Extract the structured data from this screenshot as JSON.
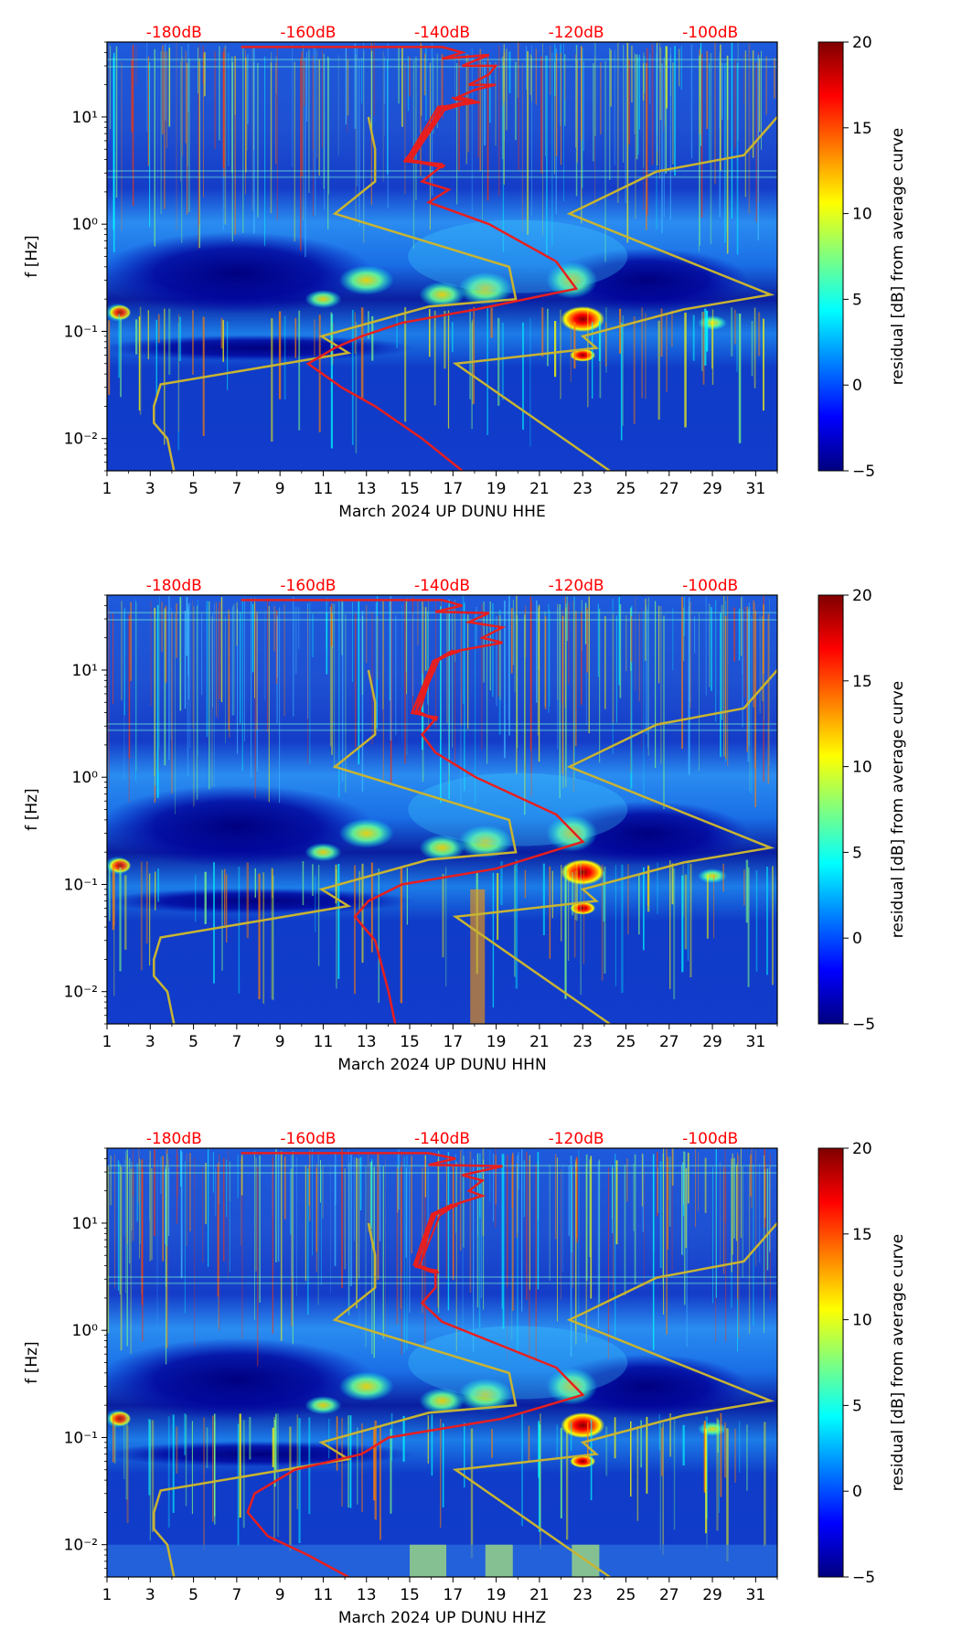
{
  "chart_data": [
    {
      "type": "heatmap",
      "xlabel": "March 2024 UP DUNU  HHE",
      "ylabel": "f [Hz]",
      "xticks": [
        "1",
        "3",
        "5",
        "7",
        "9",
        "11",
        "13",
        "15",
        "17",
        "19",
        "21",
        "23",
        "25",
        "27",
        "29",
        "31"
      ],
      "xlim": [
        1,
        32
      ],
      "yscale": "log",
      "ylim": [
        0.005,
        50
      ],
      "yticks": [
        {
          "label": "10⁻²",
          "value": 0.01
        },
        {
          "label": "10⁻¹",
          "value": 0.1
        },
        {
          "label": "10⁰",
          "value": 1
        },
        {
          "label": "10¹",
          "value": 10
        }
      ],
      "top_axis_labels": [
        "-180dB",
        "-160dB",
        "-140dB",
        "-120dB",
        "-100dB"
      ],
      "colorbar": {
        "label": "residual [dB] from average curve",
        "range": [
          -5,
          20
        ],
        "ticks": [
          "−5",
          "0",
          "5",
          "10",
          "15",
          "20"
        ],
        "colormap": "jet"
      },
      "grid": false
    },
    {
      "type": "heatmap",
      "xlabel": "March 2024 UP DUNU  HHN",
      "ylabel": "f [Hz]",
      "xticks": [
        "1",
        "3",
        "5",
        "7",
        "9",
        "11",
        "13",
        "15",
        "17",
        "19",
        "21",
        "23",
        "25",
        "27",
        "29",
        "31"
      ],
      "xlim": [
        1,
        32
      ],
      "yscale": "log",
      "ylim": [
        0.005,
        50
      ],
      "yticks": [
        {
          "label": "10⁻²",
          "value": 0.01
        },
        {
          "label": "10⁻¹",
          "value": 0.1
        },
        {
          "label": "10⁰",
          "value": 1
        },
        {
          "label": "10¹",
          "value": 10
        }
      ],
      "top_axis_labels": [
        "-180dB",
        "-160dB",
        "-140dB",
        "-120dB",
        "-100dB"
      ],
      "colorbar": {
        "label": "residual [dB] from average curve",
        "range": [
          -5,
          20
        ],
        "ticks": [
          "−5",
          "0",
          "5",
          "10",
          "15",
          "20"
        ],
        "colormap": "jet"
      },
      "grid": false
    },
    {
      "type": "heatmap",
      "xlabel": "March 2024 UP DUNU  HHZ",
      "ylabel": "f [Hz]",
      "xticks": [
        "1",
        "3",
        "5",
        "7",
        "9",
        "11",
        "13",
        "15",
        "17",
        "19",
        "21",
        "23",
        "25",
        "27",
        "29",
        "31"
      ],
      "xlim": [
        1,
        32
      ],
      "yscale": "log",
      "ylim": [
        0.005,
        50
      ],
      "yticks": [
        {
          "label": "10⁻²",
          "value": 0.01
        },
        {
          "label": "10⁻¹",
          "value": 0.1
        },
        {
          "label": "10⁰",
          "value": 1
        },
        {
          "label": "10¹",
          "value": 10
        }
      ],
      "top_axis_labels": [
        "-180dB",
        "-160dB",
        "-140dB",
        "-120dB",
        "-100dB"
      ],
      "colorbar": {
        "label": "residual [dB] from average curve",
        "range": [
          -5,
          20
        ],
        "ticks": [
          "−5",
          "0",
          "5",
          "10",
          "15",
          "20"
        ],
        "colormap": "jet"
      },
      "grid": false
    }
  ],
  "overlay_curves": {
    "noise_model_color": "#c8b432",
    "psd_color": "#e81e1e",
    "noise_model_low": [
      [
        -151,
        10
      ],
      [
        -150,
        5
      ],
      [
        -150,
        2.5
      ],
      [
        -156,
        1.25
      ],
      [
        -130,
        0.4
      ],
      [
        -129,
        0.2
      ],
      [
        -142,
        0.17
      ],
      [
        -158,
        0.09
      ],
      [
        -154,
        0.063
      ],
      [
        -167,
        0.046
      ],
      [
        -182,
        0.032
      ],
      [
        -183,
        0.02
      ],
      [
        -183,
        0.014
      ],
      [
        -181,
        0.01
      ],
      [
        -180,
        0.005
      ]
    ],
    "noise_model_high": [
      [
        -90,
        10
      ],
      [
        -95,
        4.4
      ],
      [
        -108,
        3.1
      ],
      [
        -121,
        1.25
      ],
      [
        -91,
        0.22
      ],
      [
        -104,
        0.16
      ],
      [
        -119,
        0.09
      ],
      [
        -117,
        0.07
      ],
      [
        -138,
        0.05
      ],
      [
        -115,
        0.005
      ]
    ],
    "psd_curves": [
      [
        [
          -170,
          45
        ],
        [
          -140,
          45
        ],
        [
          -137,
          40
        ],
        [
          -140,
          35
        ],
        [
          -133,
          38
        ],
        [
          -137,
          30
        ],
        [
          -132,
          30
        ],
        [
          -133,
          25
        ],
        [
          -136,
          20
        ],
        [
          -132,
          20
        ],
        [
          -135,
          18
        ],
        [
          -138,
          15
        ],
        [
          -135,
          14
        ],
        [
          -140,
          12
        ],
        [
          -145,
          4
        ],
        [
          -140,
          3.5
        ],
        [
          -143,
          2.5
        ],
        [
          -139,
          2.1
        ],
        [
          -142,
          1.6
        ],
        [
          -133,
          1.0
        ],
        [
          -123,
          0.45
        ],
        [
          -120,
          0.25
        ],
        [
          -135,
          0.16
        ],
        [
          -146,
          0.12
        ],
        [
          -152,
          0.09
        ],
        [
          -156,
          0.07
        ],
        [
          -160,
          0.05
        ],
        [
          -155,
          0.03
        ],
        [
          -150,
          0.02
        ],
        [
          -143,
          0.01
        ],
        [
          -137,
          0.005
        ]
      ],
      [
        [
          -170,
          45
        ],
        [
          -140,
          45
        ],
        [
          -137,
          40
        ],
        [
          -141,
          35
        ],
        [
          -133,
          34
        ],
        [
          -136,
          28
        ],
        [
          -131,
          25
        ],
        [
          -134,
          20
        ],
        [
          -131,
          18
        ],
        [
          -138,
          15
        ],
        [
          -141,
          12
        ],
        [
          -144,
          4
        ],
        [
          -141,
          3.5
        ],
        [
          -143,
          2.5
        ],
        [
          -141,
          1.7
        ],
        [
          -135,
          1.0
        ],
        [
          -123,
          0.45
        ],
        [
          -119,
          0.25
        ],
        [
          -132,
          0.14
        ],
        [
          -146,
          0.1
        ],
        [
          -151,
          0.07
        ],
        [
          -153,
          0.05
        ],
        [
          -150,
          0.03
        ],
        [
          -148,
          0.01
        ],
        [
          -147,
          0.005
        ]
      ],
      [
        [
          -170,
          45
        ],
        [
          -142,
          45
        ],
        [
          -138,
          40
        ],
        [
          -142,
          35
        ],
        [
          -131,
          34
        ],
        [
          -137,
          28
        ],
        [
          -134,
          25
        ],
        [
          -136,
          20
        ],
        [
          -134,
          18
        ],
        [
          -138,
          15
        ],
        [
          -141,
          12
        ],
        [
          -144,
          4
        ],
        [
          -141,
          3.5
        ],
        [
          -141,
          2.5
        ],
        [
          -143,
          1.8
        ],
        [
          -140,
          1.2
        ],
        [
          -135,
          0.9
        ],
        [
          -123,
          0.45
        ],
        [
          -119,
          0.25
        ],
        [
          -131,
          0.15
        ],
        [
          -148,
          0.1
        ],
        [
          -152,
          0.07
        ],
        [
          -162,
          0.05
        ],
        [
          -168,
          0.03
        ],
        [
          -169,
          0.02
        ],
        [
          -166,
          0.012
        ],
        [
          -160,
          0.008
        ],
        [
          -154,
          0.005
        ]
      ]
    ]
  }
}
